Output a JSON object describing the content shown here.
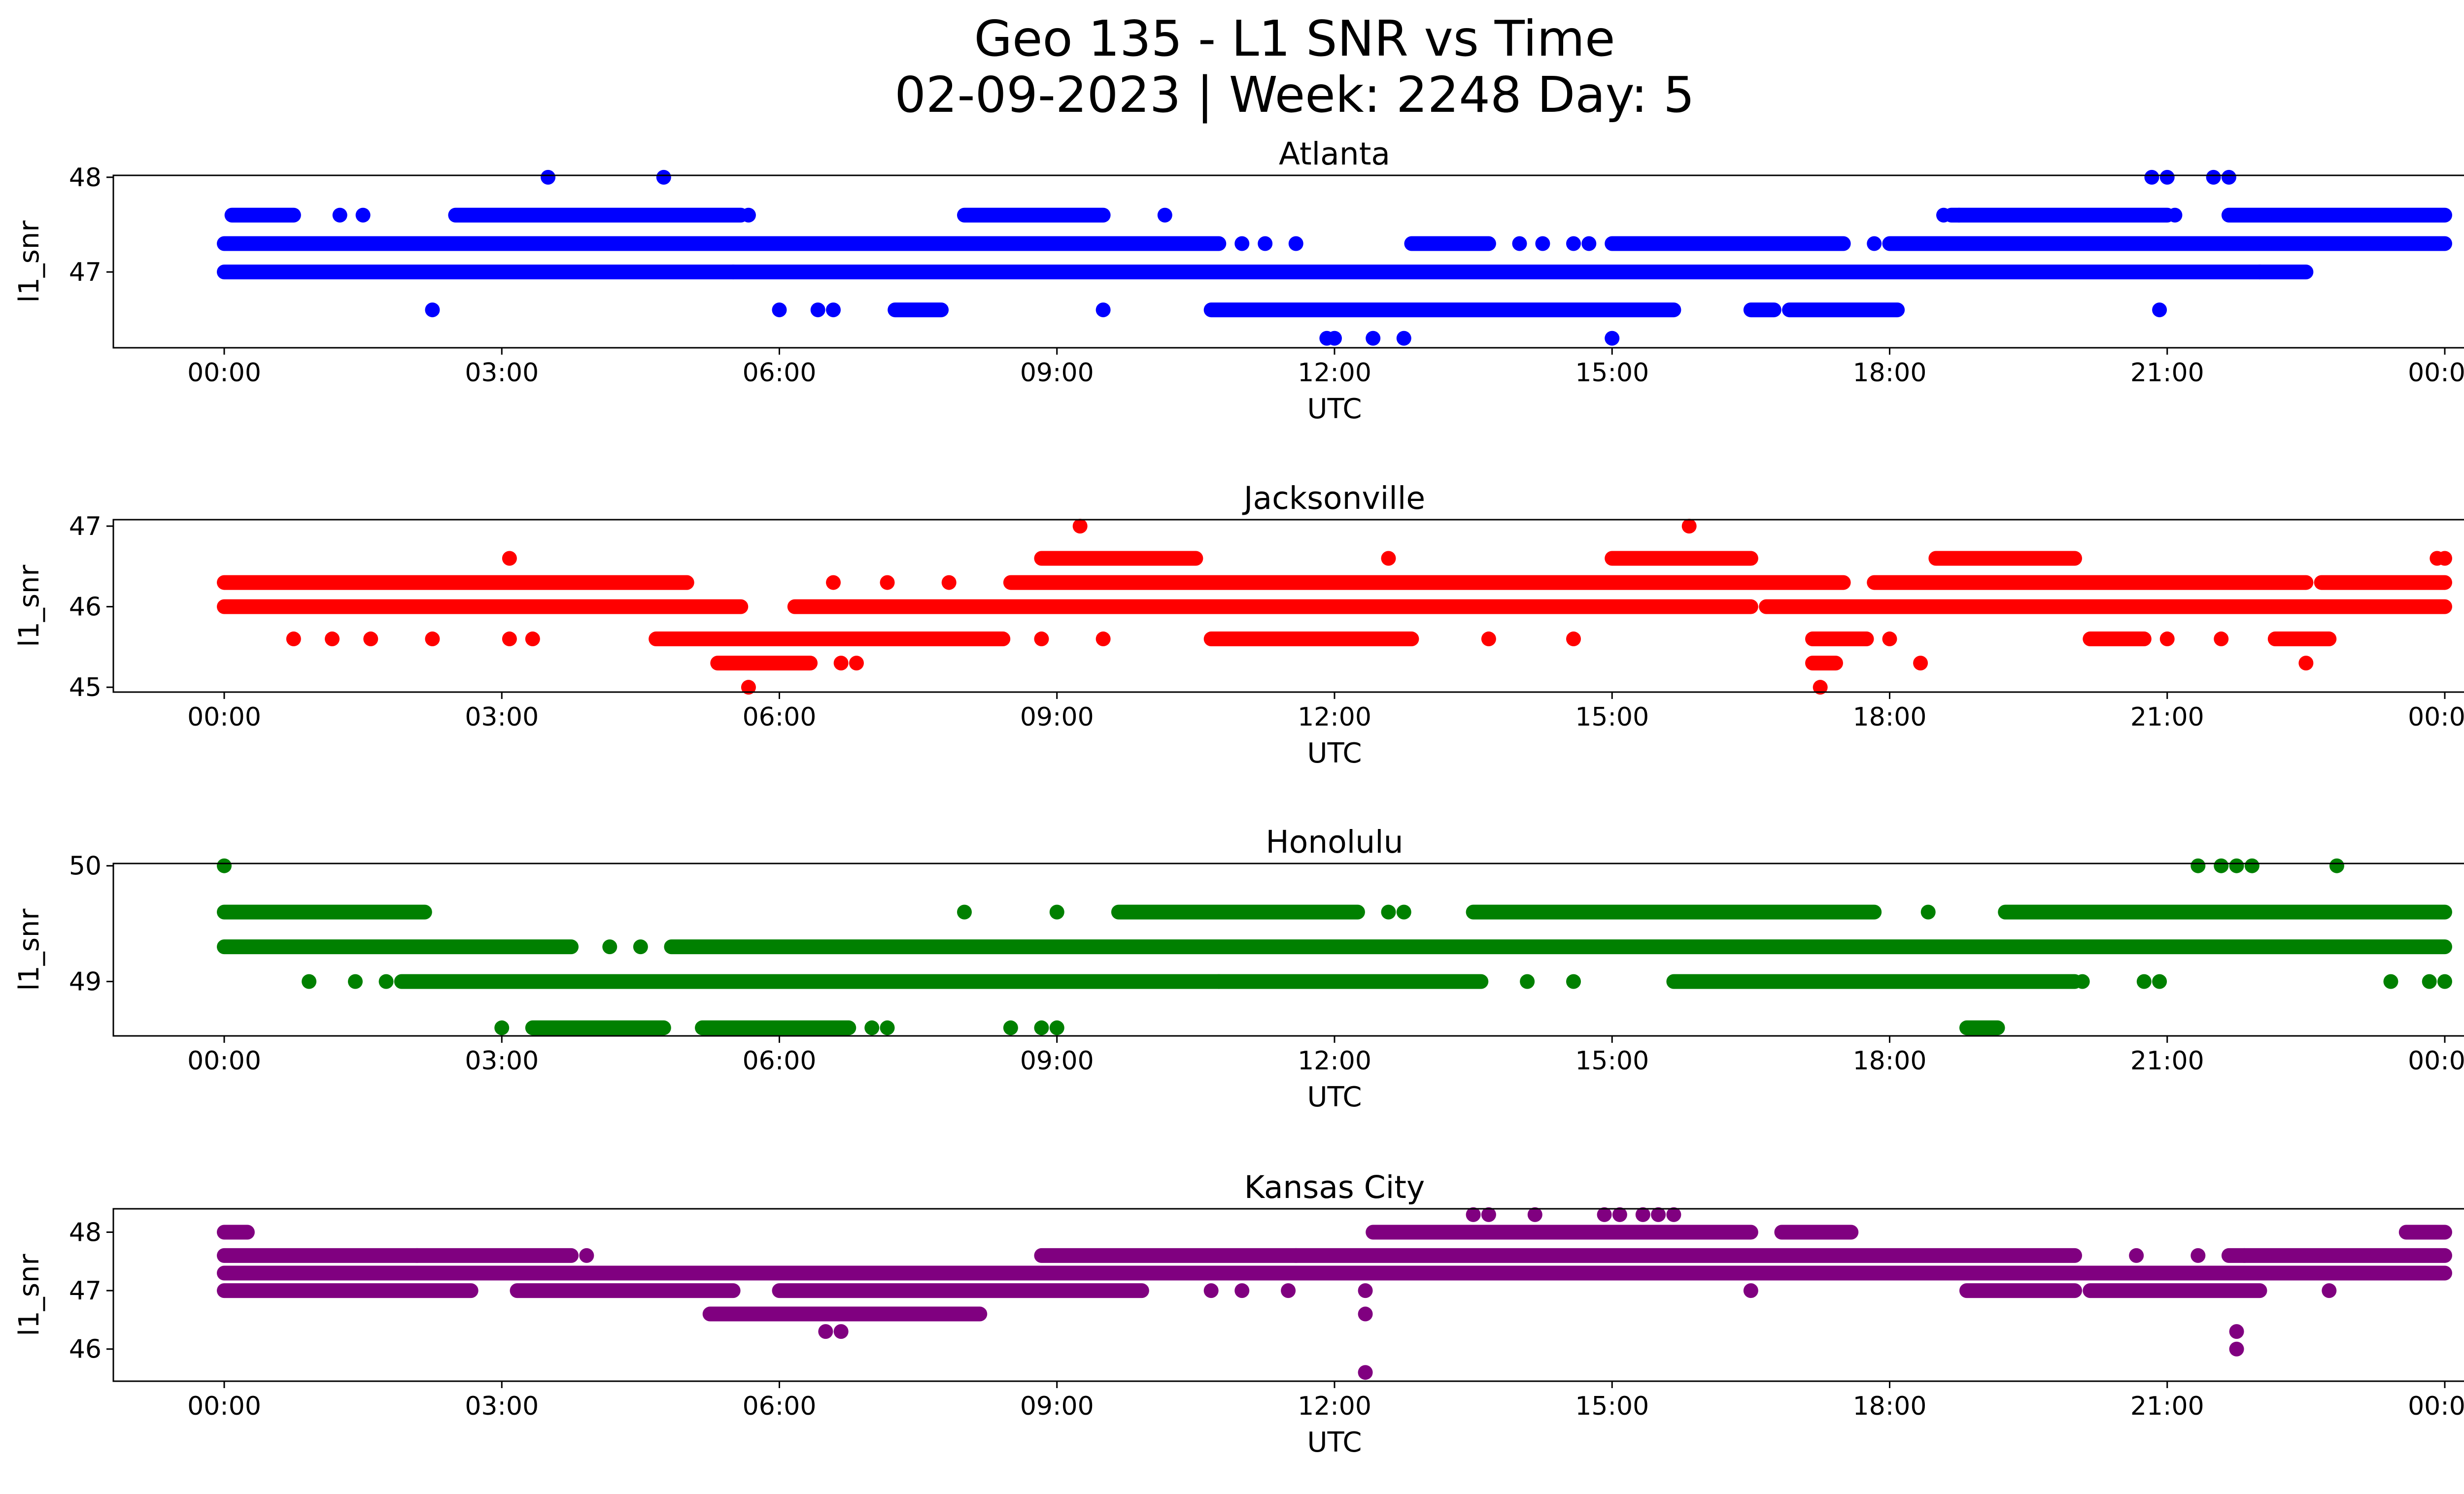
{
  "figure": {
    "title_line1": "Geo 135 - L1 SNR vs Time",
    "title_line2": "02-09-2023 | Week: 2248 Day: 5"
  },
  "chart_data": [
    {
      "type": "scatter",
      "title": "Atlanta",
      "xlabel": "UTC",
      "ylabel": "l1_snr",
      "color": "#0000ff",
      "xlim": [
        "00:00",
        "24:00"
      ],
      "ylim": [
        46.2,
        48.02
      ],
      "xticks": [
        "00:00",
        "03:00",
        "06:00",
        "09:00",
        "12:00",
        "15:00",
        "18:00",
        "21:00",
        "00:00"
      ],
      "yticks": [
        "47",
        "48"
      ],
      "ytick_values": [
        47,
        48
      ],
      "segments": [
        {
          "y": 47.0,
          "ranges": [
            [
              "00:00",
              "05:30"
            ],
            [
              "05:30",
              "22:00"
            ],
            [
              "22:00",
              "22:30"
            ]
          ]
        },
        {
          "y": 47.3,
          "ranges": [
            [
              "00:00",
              "10:45"
            ],
            [
              "12:50",
              "13:40"
            ],
            [
              "15:00",
              "17:30"
            ],
            [
              "18:00",
              "24:00"
            ]
          ]
        },
        {
          "y": 47.6,
          "ranges": [
            [
              "00:05",
              "00:45"
            ],
            [
              "02:30",
              "05:35"
            ],
            [
              "08:00",
              "09:30"
            ],
            [
              "18:40",
              "21:00"
            ],
            [
              "21:40",
              "24:00"
            ]
          ]
        },
        {
          "y": 46.6,
          "ranges": [
            [
              "10:40",
              "15:40"
            ],
            [
              "16:30",
              "16:45"
            ],
            [
              "16:55",
              "18:05"
            ],
            [
              "07:15",
              "07:45"
            ]
          ]
        }
      ],
      "points": [
        [
          "03:30",
          48.0
        ],
        [
          "04:45",
          48.0
        ],
        [
          "20:50",
          48.0
        ],
        [
          "21:00",
          48.0
        ],
        [
          "21:30",
          48.0
        ],
        [
          "21:40",
          48.0
        ],
        [
          "01:15",
          47.6
        ],
        [
          "01:30",
          47.6
        ],
        [
          "05:40",
          47.6
        ],
        [
          "10:10",
          47.6
        ],
        [
          "18:35",
          47.6
        ],
        [
          "18:45",
          47.6
        ],
        [
          "21:05",
          47.6
        ],
        [
          "11:00",
          47.3
        ],
        [
          "11:15",
          47.3
        ],
        [
          "11:35",
          47.3
        ],
        [
          "14:00",
          47.3
        ],
        [
          "14:15",
          47.3
        ],
        [
          "14:35",
          47.3
        ],
        [
          "14:45",
          47.3
        ],
        [
          "17:50",
          47.3
        ],
        [
          "02:15",
          46.6
        ],
        [
          "06:00",
          46.6
        ],
        [
          "06:25",
          46.6
        ],
        [
          "06:35",
          46.6
        ],
        [
          "09:30",
          46.6
        ],
        [
          "20:55",
          46.6
        ],
        [
          "11:55",
          46.3
        ],
        [
          "12:00",
          46.3
        ],
        [
          "12:25",
          46.3
        ],
        [
          "12:45",
          46.3
        ],
        [
          "15:00",
          46.3
        ]
      ]
    },
    {
      "type": "scatter",
      "title": "Jacksonville",
      "xlabel": "UTC",
      "ylabel": "l1_snr",
      "color": "#ff0000",
      "xlim": [
        "00:00",
        "24:00"
      ],
      "ylim": [
        44.94,
        47.08
      ],
      "xticks": [
        "00:00",
        "03:00",
        "06:00",
        "09:00",
        "12:00",
        "15:00",
        "18:00",
        "21:00",
        "00:00"
      ],
      "yticks": [
        "45",
        "46",
        "47"
      ],
      "ytick_values": [
        45,
        46,
        47
      ],
      "segments": [
        {
          "y": 46.0,
          "ranges": [
            [
              "00:00",
              "05:35"
            ],
            [
              "06:10",
              "16:30"
            ],
            [
              "16:40",
              "24:00"
            ]
          ]
        },
        {
          "y": 46.3,
          "ranges": [
            [
              "00:00",
              "05:00"
            ],
            [
              "08:30",
              "17:30"
            ],
            [
              "17:50",
              "22:30"
            ],
            [
              "22:40",
              "24:00"
            ]
          ]
        },
        {
          "y": 45.6,
          "ranges": [
            [
              "04:40",
              "08:25"
            ],
            [
              "10:40",
              "12:50"
            ],
            [
              "17:10",
              "17:45"
            ],
            [
              "20:10",
              "20:45"
            ],
            [
              "22:10",
              "22:45"
            ]
          ]
        },
        {
          "y": 46.6,
          "ranges": [
            [
              "08:50",
              "10:30"
            ],
            [
              "15:00",
              "16:30"
            ],
            [
              "18:30",
              "20:00"
            ]
          ]
        },
        {
          "y": 45.3,
          "ranges": [
            [
              "05:20",
              "06:20"
            ],
            [
              "17:10",
              "17:25"
            ]
          ]
        }
      ],
      "points": [
        [
          "03:05",
          46.6
        ],
        [
          "09:15",
          47.0
        ],
        [
          "12:35",
          46.6
        ],
        [
          "15:50",
          47.0
        ],
        [
          "23:55",
          46.6
        ],
        [
          "24:00",
          46.6
        ],
        [
          "00:45",
          45.6
        ],
        [
          "01:10",
          45.6
        ],
        [
          "01:35",
          45.6
        ],
        [
          "02:15",
          45.6
        ],
        [
          "03:05",
          45.6
        ],
        [
          "03:20",
          45.6
        ],
        [
          "08:50",
          45.6
        ],
        [
          "09:30",
          45.6
        ],
        [
          "13:40",
          45.6
        ],
        [
          "14:35",
          45.6
        ],
        [
          "18:00",
          45.6
        ],
        [
          "21:00",
          45.6
        ],
        [
          "21:35",
          45.6
        ],
        [
          "06:40",
          45.3
        ],
        [
          "06:50",
          45.3
        ],
        [
          "18:20",
          45.3
        ],
        [
          "22:30",
          45.3
        ],
        [
          "05:40",
          45.0
        ],
        [
          "17:15",
          45.0
        ],
        [
          "06:35",
          46.3
        ],
        [
          "07:10",
          46.3
        ],
        [
          "07:50",
          46.3
        ]
      ]
    },
    {
      "type": "scatter",
      "title": "Honolulu",
      "xlabel": "UTC",
      "ylabel": "l1_snr",
      "color": "#008000",
      "xlim": [
        "00:00",
        "24:00"
      ],
      "ylim": [
        48.53,
        50.02
      ],
      "xticks": [
        "00:00",
        "03:00",
        "06:00",
        "09:00",
        "12:00",
        "15:00",
        "18:00",
        "21:00",
        "00:00"
      ],
      "yticks": [
        "49",
        "50"
      ],
      "ytick_values": [
        49,
        50
      ],
      "segments": [
        {
          "y": 49.3,
          "ranges": [
            [
              "00:00",
              "03:45"
            ],
            [
              "04:50",
              "24:00"
            ]
          ]
        },
        {
          "y": 49.0,
          "ranges": [
            [
              "01:55",
              "10:45"
            ],
            [
              "10:45",
              "13:35"
            ],
            [
              "15:40",
              "20:00"
            ]
          ]
        },
        {
          "y": 49.6,
          "ranges": [
            [
              "00:00",
              "02:10"
            ],
            [
              "09:40",
              "12:15"
            ],
            [
              "13:30",
              "17:50"
            ],
            [
              "19:15",
              "24:00"
            ]
          ]
        },
        {
          "y": 48.6,
          "ranges": [
            [
              "03:20",
              "04:45"
            ],
            [
              "05:10",
              "06:45"
            ],
            [
              "18:50",
              "19:10"
            ]
          ]
        }
      ],
      "points": [
        [
          "00:00",
          50.0
        ],
        [
          "21:20",
          50.0
        ],
        [
          "21:35",
          50.0
        ],
        [
          "21:45",
          50.0
        ],
        [
          "21:55",
          50.0
        ],
        [
          "22:50",
          50.0
        ],
        [
          "00:55",
          49.0
        ],
        [
          "01:25",
          49.0
        ],
        [
          "01:45",
          49.0
        ],
        [
          "14:05",
          49.0
        ],
        [
          "14:35",
          49.0
        ],
        [
          "20:05",
          49.0
        ],
        [
          "20:45",
          49.0
        ],
        [
          "20:55",
          49.0
        ],
        [
          "23:25",
          49.0
        ],
        [
          "23:50",
          49.0
        ],
        [
          "24:00",
          49.0
        ],
        [
          "08:00",
          49.6
        ],
        [
          "09:00",
          49.6
        ],
        [
          "12:35",
          49.6
        ],
        [
          "12:45",
          49.6
        ],
        [
          "18:25",
          49.6
        ],
        [
          "04:10",
          49.3
        ],
        [
          "04:30",
          49.3
        ],
        [
          "03:00",
          48.6
        ],
        [
          "08:30",
          48.6
        ],
        [
          "08:50",
          48.6
        ],
        [
          "09:00",
          48.6
        ],
        [
          "07:00",
          48.6
        ],
        [
          "07:10",
          48.6
        ]
      ]
    },
    {
      "type": "scatter",
      "title": "Kansas City",
      "xlabel": "UTC",
      "ylabel": "l1_snr",
      "color": "#800080",
      "xlim": [
        "00:00",
        "24:00"
      ],
      "ylim": [
        45.45,
        48.4
      ],
      "xticks": [
        "00:00",
        "03:00",
        "06:00",
        "09:00",
        "12:00",
        "15:00",
        "18:00",
        "21:00",
        "00:00"
      ],
      "yticks": [
        "46",
        "47",
        "48"
      ],
      "ytick_values": [
        46,
        47,
        48
      ],
      "segments": [
        {
          "y": 47.3,
          "ranges": [
            [
              "00:00",
              "05:20"
            ],
            [
              "05:20",
              "24:00"
            ]
          ]
        },
        {
          "y": 47.6,
          "ranges": [
            [
              "00:00",
              "03:45"
            ],
            [
              "08:50",
              "20:00"
            ],
            [
              "21:40",
              "24:00"
            ]
          ]
        },
        {
          "y": 47.0,
          "ranges": [
            [
              "00:00",
              "02:40"
            ],
            [
              "03:10",
              "05:30"
            ],
            [
              "06:00",
              "09:55"
            ],
            [
              "18:50",
              "20:00"
            ],
            [
              "20:10",
              "22:00"
            ]
          ]
        },
        {
          "y": 46.6,
          "ranges": [
            [
              "05:15",
              "08:10"
            ]
          ]
        },
        {
          "y": 48.0,
          "ranges": [
            [
              "00:00",
              "00:15"
            ],
            [
              "12:25",
              "16:30"
            ],
            [
              "16:50",
              "17:35"
            ],
            [
              "23:35",
              "24:00"
            ]
          ]
        }
      ],
      "points": [
        [
          "13:30",
          48.3
        ],
        [
          "13:40",
          48.3
        ],
        [
          "14:10",
          48.3
        ],
        [
          "14:55",
          48.3
        ],
        [
          "15:05",
          48.3
        ],
        [
          "15:20",
          48.3
        ],
        [
          "15:30",
          48.3
        ],
        [
          "15:40",
          48.3
        ],
        [
          "06:30",
          46.3
        ],
        [
          "06:40",
          46.3
        ],
        [
          "12:20",
          46.6
        ],
        [
          "12:20",
          45.6
        ],
        [
          "21:45",
          46.3
        ],
        [
          "21:45",
          46.0
        ],
        [
          "10:40",
          47.0
        ],
        [
          "11:00",
          47.0
        ],
        [
          "11:30",
          47.0
        ],
        [
          "12:20",
          47.0
        ],
        [
          "16:30",
          47.0
        ],
        [
          "22:45",
          47.0
        ],
        [
          "02:05",
          47.6
        ],
        [
          "03:55",
          47.6
        ],
        [
          "11:35",
          47.6
        ],
        [
          "20:40",
          47.6
        ],
        [
          "21:20",
          47.6
        ],
        [
          "21:50",
          47.6
        ]
      ]
    }
  ]
}
